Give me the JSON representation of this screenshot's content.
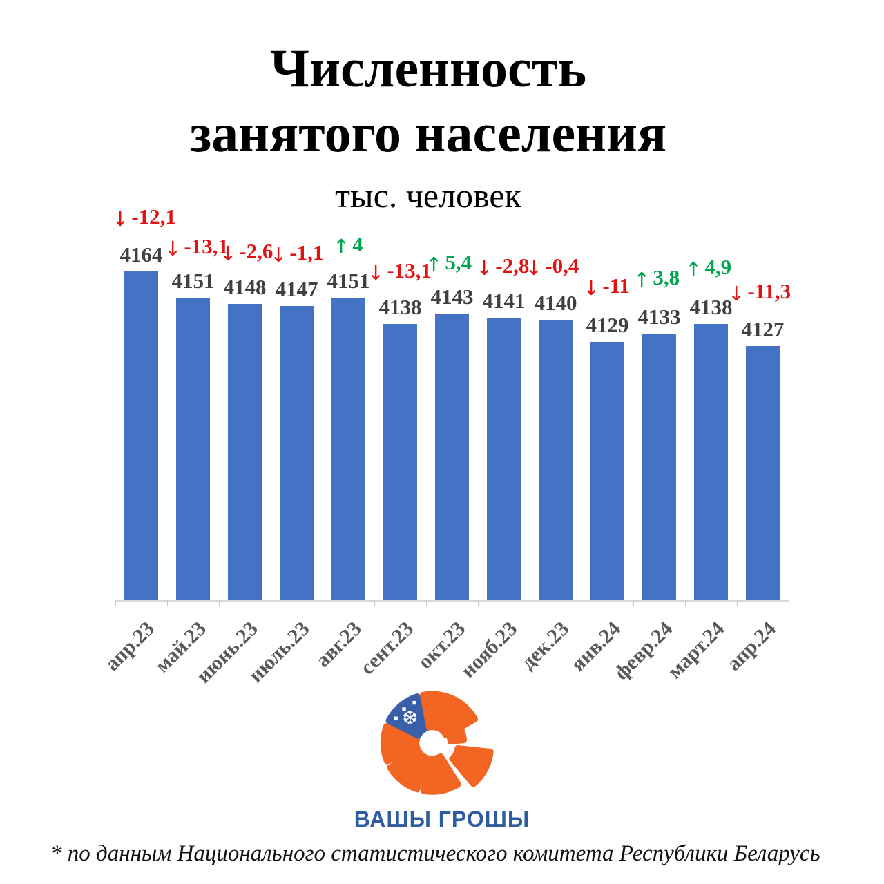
{
  "title": {
    "line1": "Численность",
    "line2": "занятого населения",
    "subtitle": "тыс. человек"
  },
  "chart_data": {
    "type": "bar",
    "title": "Численность занятого населения",
    "ylabel": "тыс. человек",
    "categories": [
      "апр.23",
      "май.23",
      "июнь.23",
      "июль.23",
      "авг.23",
      "сент.23",
      "окт.23",
      "нояб.23",
      "дек.23",
      "янв.24",
      "февр.24",
      "март.24",
      "апр.24"
    ],
    "values": [
      4164,
      4151,
      4148,
      4147,
      4151,
      4138,
      4143,
      4141,
      4140,
      4129,
      4133,
      4138,
      4127
    ],
    "changes": [
      {
        "dir": "down",
        "label": "-12,1"
      },
      {
        "dir": "down",
        "label": "-13,1"
      },
      {
        "dir": "down",
        "label": "-2,6"
      },
      {
        "dir": "down",
        "label": "-1,1"
      },
      {
        "dir": "up",
        "label": "4"
      },
      {
        "dir": "down",
        "label": "-13,1"
      },
      {
        "dir": "up",
        "label": "5,4"
      },
      {
        "dir": "down",
        "label": "-2,8"
      },
      {
        "dir": "down",
        "label": "-0,4"
      },
      {
        "dir": "down",
        "label": "-11"
      },
      {
        "dir": "up",
        "label": "3,8"
      },
      {
        "dir": "up",
        "label": "4,9"
      },
      {
        "dir": "down",
        "label": "-11,3"
      }
    ],
    "ylim": [
      4000,
      4170
    ],
    "grid": false,
    "legend": false,
    "bar_color": "#4472C4",
    "up_color": "#00A550",
    "down_color": "#E31212",
    "value_label_color": "#404040",
    "axis_label_color": "#595959"
  },
  "logo": {
    "text": "ВАШЫ ГРОШЫ",
    "orange": "#F26522",
    "ornament_blue": "#3A5FA9",
    "text_color": "#2E5C9E",
    "icon": "snowflake-ornament-icon"
  },
  "footer": {
    "note": "* по данным Национального статистического комитета Республики Беларусь"
  }
}
